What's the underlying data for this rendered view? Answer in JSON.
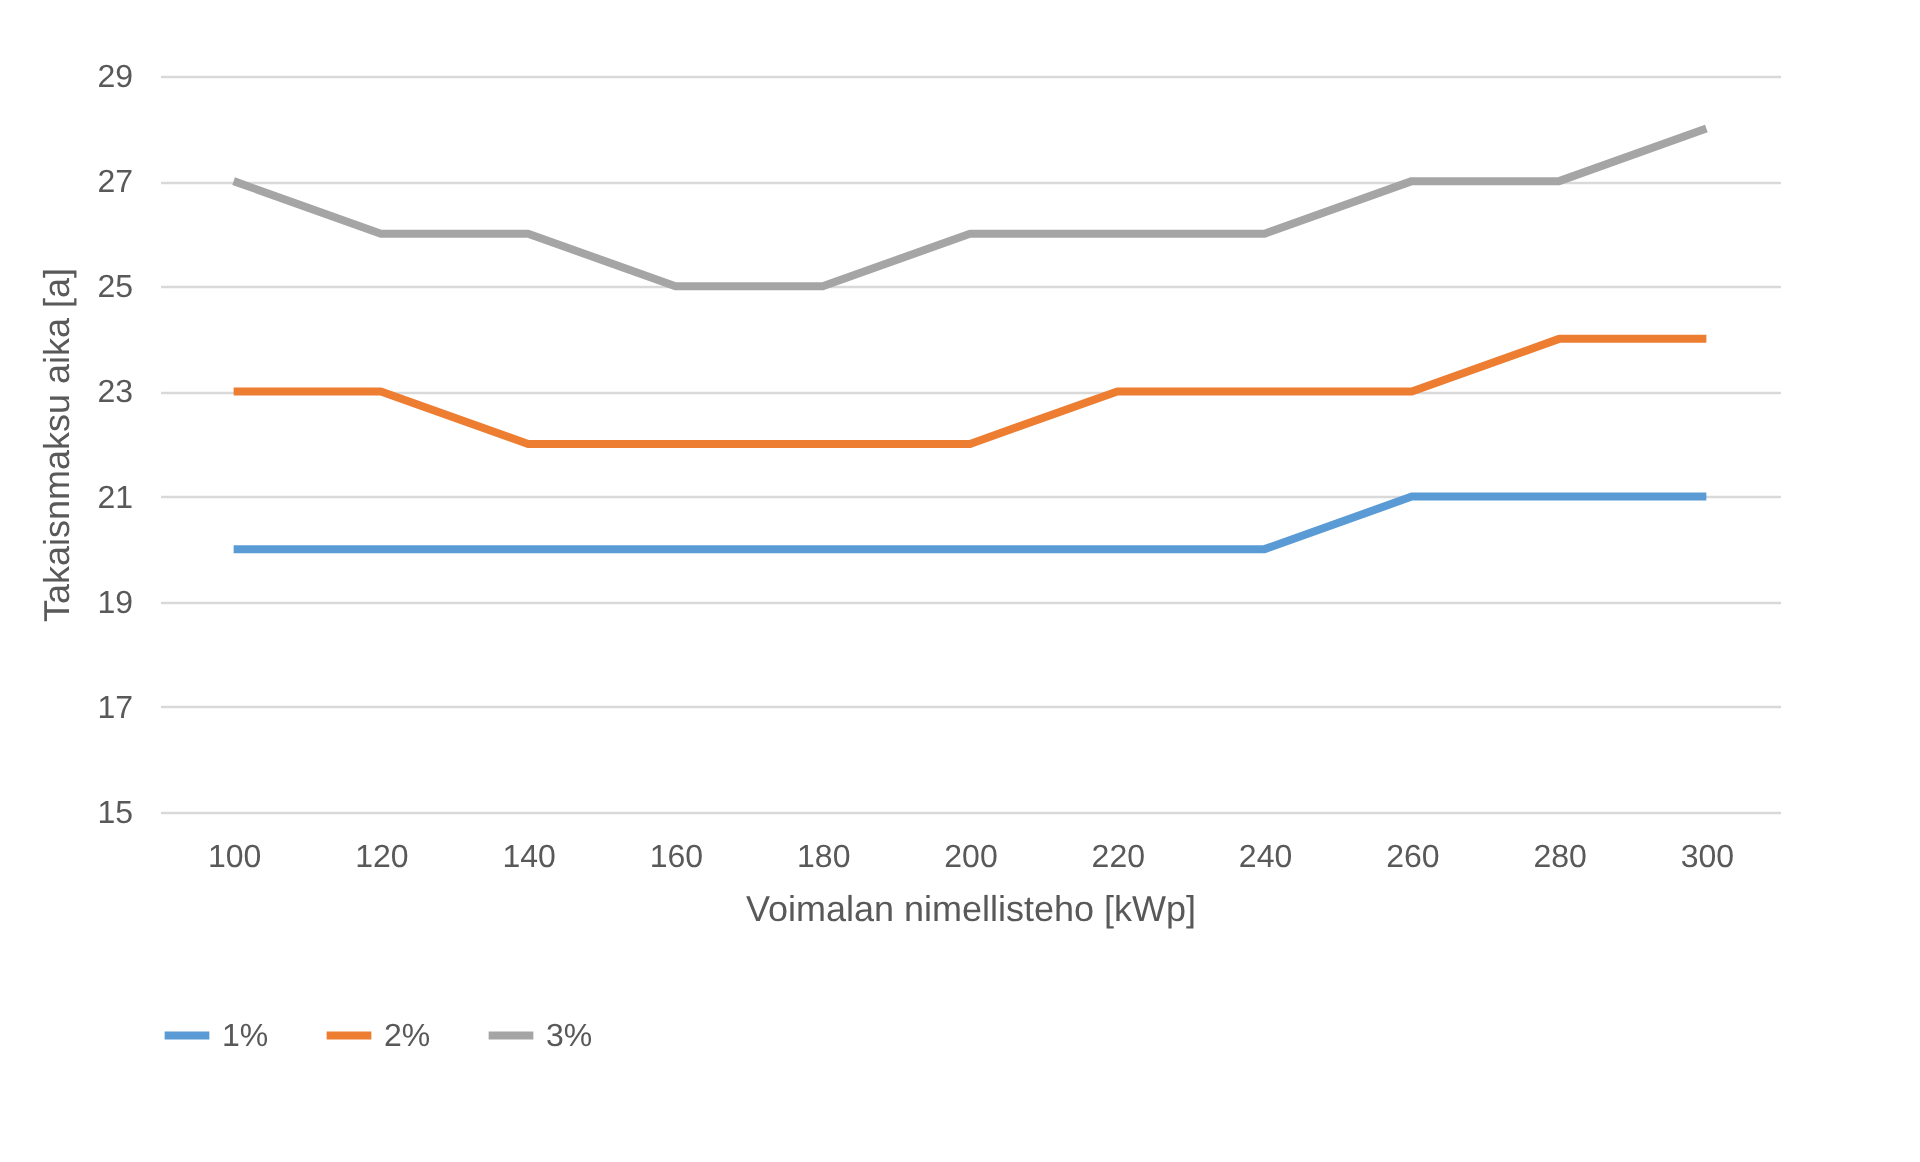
{
  "chart_data": {
    "type": "line",
    "xlabel": "Voimalan nimellisteho [kWp]",
    "ylabel": "Takaisnmaksu aika [a]",
    "categories": [
      "100",
      "120",
      "140",
      "160",
      "180",
      "200",
      "220",
      "240",
      "260",
      "280",
      "300"
    ],
    "series": [
      {
        "name": "1%",
        "color": "#5b9bd5",
        "values": [
          20,
          20,
          20,
          20,
          20,
          20,
          20,
          20,
          21,
          21,
          21
        ]
      },
      {
        "name": "2%",
        "color": "#ed7d31",
        "values": [
          23,
          23,
          22,
          22,
          22,
          22,
          23,
          23,
          23,
          24,
          24
        ]
      },
      {
        "name": "3%",
        "color": "#a5a5a5",
        "values": [
          27,
          26,
          26,
          25,
          25,
          26,
          26,
          26,
          27,
          27,
          28
        ]
      }
    ],
    "ylim": [
      15,
      29
    ],
    "yticks": [
      15,
      17,
      19,
      21,
      23,
      25,
      27,
      29
    ],
    "grid": "y",
    "legend": "bottom",
    "marker": "none",
    "line_style": "solid"
  }
}
